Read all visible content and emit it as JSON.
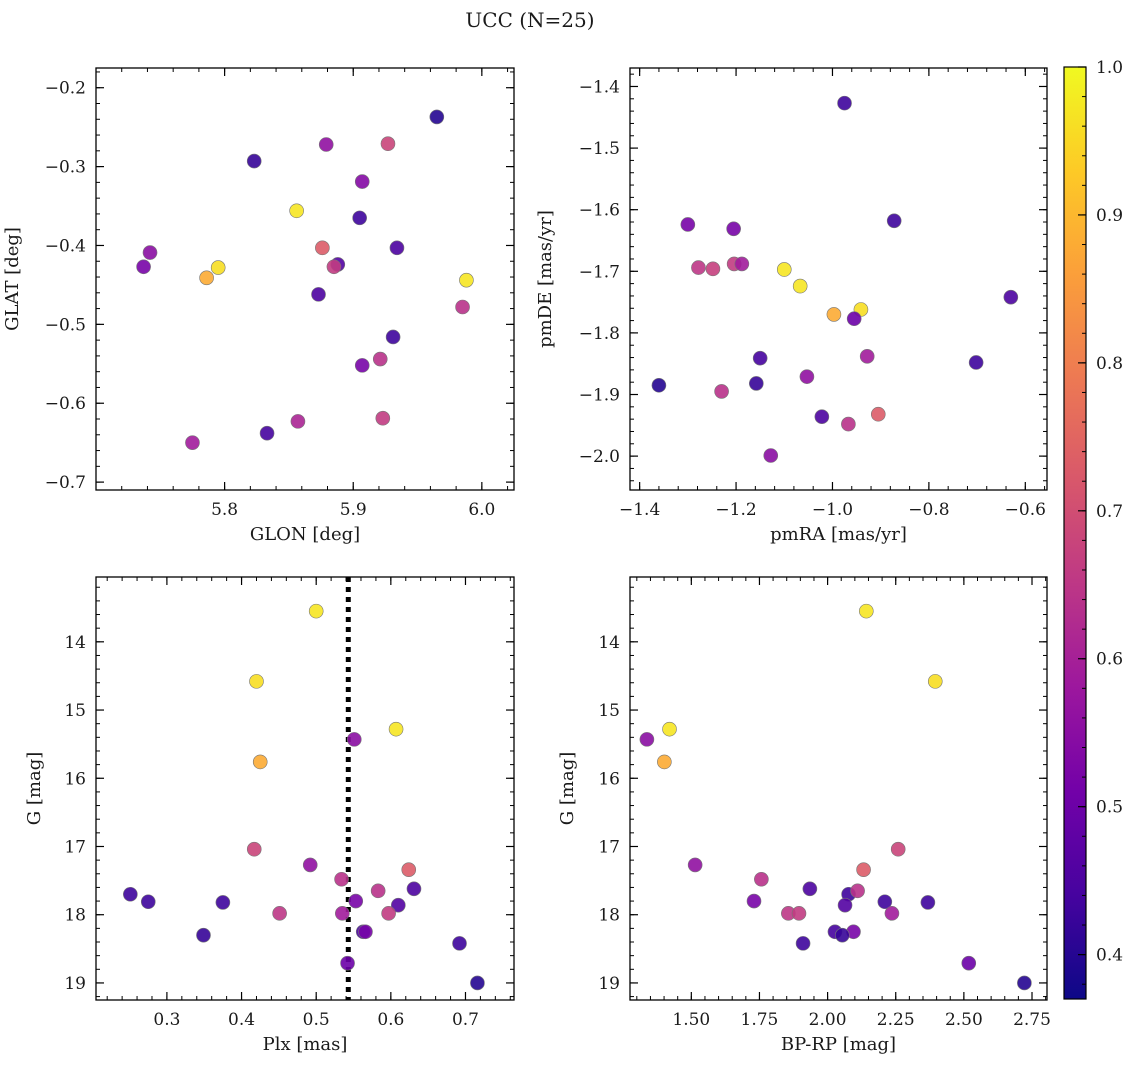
{
  "figure": {
    "title": "UCC (N=25)"
  },
  "colorbar": {
    "range": [
      0.37,
      1.0
    ],
    "ticks": [
      0.4,
      0.5,
      0.6,
      0.7,
      0.8,
      0.9,
      1.0
    ],
    "tick_labels": [
      "0.4",
      "0.5",
      "0.6",
      "0.7",
      "0.8",
      "0.9",
      "1.0"
    ],
    "colormap": "plasma",
    "stops": [
      "#0d0887",
      "#46039f",
      "#7201a8",
      "#9c179e",
      "#bd3786",
      "#d8576b",
      "#ed7953",
      "#fb9f3a",
      "#fdca26",
      "#f0f921"
    ]
  },
  "chart_data": [
    {
      "type": "scatter",
      "xlabel": "GLON [deg]",
      "ylabel": "GLAT [deg]",
      "xlim": [
        5.7,
        6.025
      ],
      "ylim": [
        -0.71,
        -0.175
      ],
      "x_ticks": [
        5.8,
        5.9,
        6.0
      ],
      "x_tick_labels": [
        "5.8",
        "5.9",
        "6.0"
      ],
      "y_ticks": [
        -0.7,
        -0.6,
        -0.5,
        -0.4,
        -0.3,
        -0.2
      ],
      "y_tick_labels": [
        "−0.7",
        "−0.6",
        "−0.5",
        "−0.4",
        "−0.3",
        "−0.2"
      ],
      "points": [
        {
          "x": 5.965,
          "y": -0.237,
          "c": 0.4
        },
        {
          "x": 5.823,
          "y": -0.293,
          "c": 0.42
        },
        {
          "x": 5.879,
          "y": -0.272,
          "c": 0.56
        },
        {
          "x": 5.927,
          "y": -0.271,
          "c": 0.68
        },
        {
          "x": 5.907,
          "y": -0.319,
          "c": 0.54
        },
        {
          "x": 5.856,
          "y": -0.356,
          "c": 0.97
        },
        {
          "x": 5.905,
          "y": -0.365,
          "c": 0.43
        },
        {
          "x": 5.876,
          "y": -0.403,
          "c": 0.73
        },
        {
          "x": 5.934,
          "y": -0.403,
          "c": 0.45
        },
        {
          "x": 5.742,
          "y": -0.409,
          "c": 0.55
        },
        {
          "x": 5.737,
          "y": -0.427,
          "c": 0.52
        },
        {
          "x": 5.795,
          "y": -0.428,
          "c": 0.96
        },
        {
          "x": 5.786,
          "y": -0.441,
          "c": 0.88
        },
        {
          "x": 5.988,
          "y": -0.444,
          "c": 0.97
        },
        {
          "x": 5.888,
          "y": -0.424,
          "c": 0.46
        },
        {
          "x": 5.885,
          "y": -0.427,
          "c": 0.66
        },
        {
          "x": 5.873,
          "y": -0.462,
          "c": 0.45
        },
        {
          "x": 5.985,
          "y": -0.478,
          "c": 0.64
        },
        {
          "x": 5.931,
          "y": -0.516,
          "c": 0.43
        },
        {
          "x": 5.921,
          "y": -0.544,
          "c": 0.64
        },
        {
          "x": 5.907,
          "y": -0.552,
          "c": 0.52
        },
        {
          "x": 5.857,
          "y": -0.623,
          "c": 0.61
        },
        {
          "x": 5.923,
          "y": -0.619,
          "c": 0.66
        },
        {
          "x": 5.833,
          "y": -0.638,
          "c": 0.44
        },
        {
          "x": 5.775,
          "y": -0.65,
          "c": 0.59
        }
      ]
    },
    {
      "type": "scatter",
      "xlabel": "pmRA [mas/yr]",
      "ylabel": "pmDE [mas/yr]",
      "xlim": [
        -1.42,
        -0.555
      ],
      "ylim": [
        -2.055,
        -1.37
      ],
      "x_ticks": [
        -1.4,
        -1.2,
        -1.0,
        -0.8,
        -0.6
      ],
      "x_tick_labels": [
        "−1.4",
        "−1.2",
        "−1.0",
        "−0.8",
        "−0.6"
      ],
      "y_ticks": [
        -2.0,
        -1.9,
        -1.8,
        -1.7,
        -1.6,
        -1.5,
        -1.4
      ],
      "y_tick_labels": [
        "−2.0",
        "−1.9",
        "−1.8",
        "−1.7",
        "−1.6",
        "−1.5",
        "−1.4"
      ],
      "points": [
        {
          "x": -0.975,
          "y": -1.427,
          "c": 0.43
        },
        {
          "x": -1.3,
          "y": -1.624,
          "c": 0.52
        },
        {
          "x": -1.205,
          "y": -1.631,
          "c": 0.52
        },
        {
          "x": -0.872,
          "y": -1.618,
          "c": 0.43
        },
        {
          "x": -1.278,
          "y": -1.694,
          "c": 0.65
        },
        {
          "x": -1.248,
          "y": -1.696,
          "c": 0.67
        },
        {
          "x": -1.204,
          "y": -1.688,
          "c": 0.66
        },
        {
          "x": -1.188,
          "y": -1.688,
          "c": 0.59
        },
        {
          "x": -1.1,
          "y": -1.697,
          "c": 0.97
        },
        {
          "x": -1.067,
          "y": -1.724,
          "c": 0.97
        },
        {
          "x": -0.997,
          "y": -1.77,
          "c": 0.88
        },
        {
          "x": -0.941,
          "y": -1.762,
          "c": 0.96
        },
        {
          "x": -0.955,
          "y": -1.777,
          "c": 0.5
        },
        {
          "x": -0.63,
          "y": -1.742,
          "c": 0.45
        },
        {
          "x": -1.15,
          "y": -1.841,
          "c": 0.44
        },
        {
          "x": -0.928,
          "y": -1.838,
          "c": 0.59
        },
        {
          "x": -0.702,
          "y": -1.848,
          "c": 0.43
        },
        {
          "x": -1.36,
          "y": -1.885,
          "c": 0.4
        },
        {
          "x": -1.158,
          "y": -1.882,
          "c": 0.42
        },
        {
          "x": -1.053,
          "y": -1.871,
          "c": 0.56
        },
        {
          "x": -1.23,
          "y": -1.895,
          "c": 0.64
        },
        {
          "x": -1.022,
          "y": -1.936,
          "c": 0.45
        },
        {
          "x": -0.905,
          "y": -1.932,
          "c": 0.73
        },
        {
          "x": -0.967,
          "y": -1.948,
          "c": 0.64
        },
        {
          "x": -1.128,
          "y": -1.999,
          "c": 0.55
        }
      ]
    },
    {
      "type": "scatter",
      "xlabel": "Plx [mas]",
      "ylabel": "G [mag]",
      "xlim": [
        0.205,
        0.765
      ],
      "ylim": [
        19.25,
        13.05
      ],
      "y_inverted": true,
      "x_ticks": [
        0.3,
        0.4,
        0.5,
        0.6,
        0.7
      ],
      "x_tick_labels": [
        "0.3",
        "0.4",
        "0.5",
        "0.6",
        "0.7"
      ],
      "y_ticks": [
        14,
        15,
        16,
        17,
        18,
        19
      ],
      "y_tick_labels": [
        "14",
        "15",
        "16",
        "17",
        "18",
        "19"
      ],
      "vline": {
        "x": 0.543,
        "style": "dotted"
      },
      "points": [
        {
          "x": 0.5,
          "y": 13.55,
          "c": 0.97
        },
        {
          "x": 0.42,
          "y": 14.58,
          "c": 0.96
        },
        {
          "x": 0.607,
          "y": 15.28,
          "c": 0.97
        },
        {
          "x": 0.551,
          "y": 15.43,
          "c": 0.55
        },
        {
          "x": 0.425,
          "y": 15.76,
          "c": 0.88
        },
        {
          "x": 0.417,
          "y": 17.04,
          "c": 0.68
        },
        {
          "x": 0.492,
          "y": 17.27,
          "c": 0.56
        },
        {
          "x": 0.624,
          "y": 17.34,
          "c": 0.73
        },
        {
          "x": 0.534,
          "y": 17.48,
          "c": 0.64
        },
        {
          "x": 0.583,
          "y": 17.65,
          "c": 0.64
        },
        {
          "x": 0.631,
          "y": 17.62,
          "c": 0.45
        },
        {
          "x": 0.251,
          "y": 17.7,
          "c": 0.43
        },
        {
          "x": 0.275,
          "y": 17.81,
          "c": 0.43
        },
        {
          "x": 0.375,
          "y": 17.82,
          "c": 0.43
        },
        {
          "x": 0.553,
          "y": 17.8,
          "c": 0.52
        },
        {
          "x": 0.61,
          "y": 17.86,
          "c": 0.46
        },
        {
          "x": 0.451,
          "y": 17.98,
          "c": 0.65
        },
        {
          "x": 0.535,
          "y": 17.98,
          "c": 0.59
        },
        {
          "x": 0.597,
          "y": 17.98,
          "c": 0.66
        },
        {
          "x": 0.563,
          "y": 18.25,
          "c": 0.44
        },
        {
          "x": 0.566,
          "y": 18.25,
          "c": 0.52
        },
        {
          "x": 0.349,
          "y": 18.3,
          "c": 0.42
        },
        {
          "x": 0.692,
          "y": 18.42,
          "c": 0.43
        },
        {
          "x": 0.542,
          "y": 18.71,
          "c": 0.5
        },
        {
          "x": 0.716,
          "y": 19.0,
          "c": 0.4
        }
      ]
    },
    {
      "type": "scatter",
      "xlabel": "BP-RP [mag]",
      "ylabel": "G [mag]",
      "xlim": [
        1.275,
        2.805
      ],
      "ylim": [
        19.25,
        13.05
      ],
      "y_inverted": true,
      "x_ticks": [
        1.5,
        1.75,
        2.0,
        2.25,
        2.5,
        2.75
      ],
      "x_tick_labels": [
        "1.50",
        "1.75",
        "2.00",
        "2.25",
        "2.50",
        "2.75"
      ],
      "y_ticks": [
        14,
        15,
        16,
        17,
        18,
        19
      ],
      "y_tick_labels": [
        "14",
        "15",
        "16",
        "17",
        "18",
        "19"
      ],
      "points": [
        {
          "x": 2.142,
          "y": 13.55,
          "c": 0.97
        },
        {
          "x": 2.395,
          "y": 14.58,
          "c": 0.96
        },
        {
          "x": 1.42,
          "y": 15.28,
          "c": 0.97
        },
        {
          "x": 1.337,
          "y": 15.43,
          "c": 0.55
        },
        {
          "x": 1.401,
          "y": 15.76,
          "c": 0.88
        },
        {
          "x": 1.514,
          "y": 17.27,
          "c": 0.56
        },
        {
          "x": 2.259,
          "y": 17.04,
          "c": 0.68
        },
        {
          "x": 2.132,
          "y": 17.34,
          "c": 0.73
        },
        {
          "x": 1.757,
          "y": 17.48,
          "c": 0.64
        },
        {
          "x": 1.935,
          "y": 17.62,
          "c": 0.45
        },
        {
          "x": 2.077,
          "y": 17.7,
          "c": 0.43
        },
        {
          "x": 2.11,
          "y": 17.65,
          "c": 0.64
        },
        {
          "x": 1.73,
          "y": 17.8,
          "c": 0.52
        },
        {
          "x": 2.21,
          "y": 17.81,
          "c": 0.43
        },
        {
          "x": 2.368,
          "y": 17.82,
          "c": 0.43
        },
        {
          "x": 2.064,
          "y": 17.86,
          "c": 0.46
        },
        {
          "x": 1.856,
          "y": 17.98,
          "c": 0.65
        },
        {
          "x": 1.895,
          "y": 17.98,
          "c": 0.66
        },
        {
          "x": 2.236,
          "y": 17.98,
          "c": 0.59
        },
        {
          "x": 2.027,
          "y": 18.25,
          "c": 0.44
        },
        {
          "x": 2.095,
          "y": 18.25,
          "c": 0.52
        },
        {
          "x": 2.054,
          "y": 18.3,
          "c": 0.42
        },
        {
          "x": 1.91,
          "y": 18.42,
          "c": 0.43
        },
        {
          "x": 2.518,
          "y": 18.71,
          "c": 0.5
        },
        {
          "x": 2.722,
          "y": 19.0,
          "c": 0.4
        }
      ]
    }
  ]
}
